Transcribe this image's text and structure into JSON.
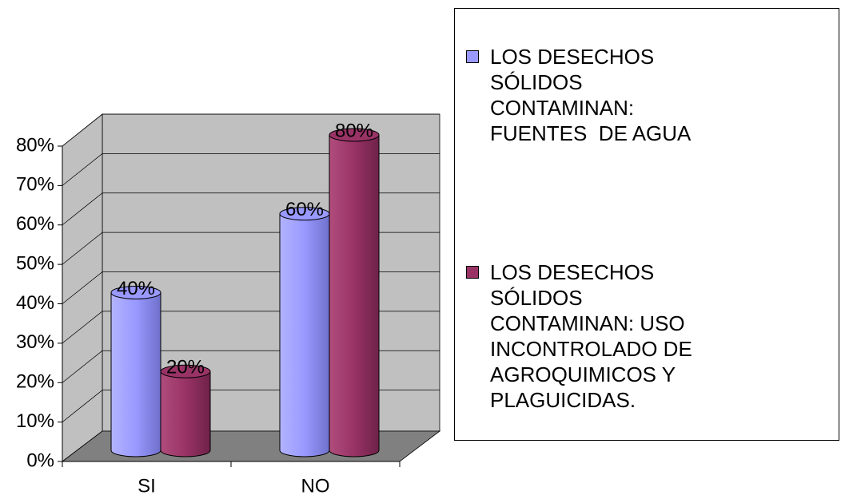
{
  "chart_data": {
    "type": "bar3d",
    "categories": [
      "SI",
      "NO"
    ],
    "series": [
      {
        "name": "LOS DESECHOS SÓLIDOS CONTAMINAN: FUENTES  DE AGUA",
        "color": "#9999ff",
        "values": [
          40,
          60
        ],
        "value_labels": [
          "40%",
          "60%"
        ]
      },
      {
        "name": "LOS DESECHOS SÓLIDOS CONTAMINAN: USO INCONTROLADO DE AGROQUIMICOS Y PLAGUICIDAS.",
        "color": "#993366",
        "values": [
          20,
          80
        ],
        "value_labels": [
          "20%",
          "80%"
        ]
      }
    ],
    "ylim": [
      0,
      80
    ],
    "yticks": [
      {
        "value": 0,
        "label": "0%"
      },
      {
        "value": 10,
        "label": "10%"
      },
      {
        "value": 20,
        "label": "20%"
      },
      {
        "value": 30,
        "label": "30%"
      },
      {
        "value": 40,
        "label": "40%"
      },
      {
        "value": 50,
        "label": "50%"
      },
      {
        "value": 60,
        "label": "60%"
      },
      {
        "value": 70,
        "label": "70%"
      },
      {
        "value": 80,
        "label": "80%"
      }
    ],
    "grid": true,
    "legend": "right"
  }
}
